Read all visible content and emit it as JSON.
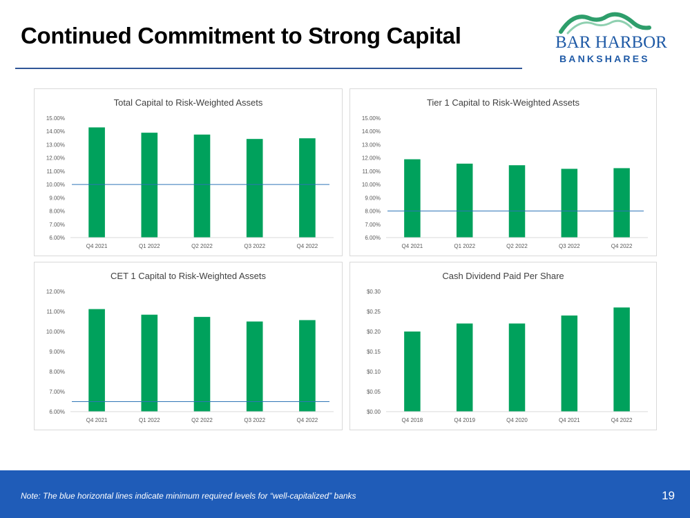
{
  "header": {
    "title": "Continued Commitment to Strong Capital",
    "logo_line1": "BAR HARBOR",
    "logo_line2": "BANKSHARES"
  },
  "footer": {
    "note": "Note:  The blue horizontal lines indicate minimum required levels for “well-capitalized” banks",
    "page_number": "19"
  },
  "colors": {
    "bar": "#00a15c",
    "threshold": "#2e75b6",
    "footer_bg": "#1f5cb8",
    "title_rule": "#2f5597",
    "logo_blue": "#1f5aa6",
    "logo_green": "#2e9e6b"
  },
  "chart_data": [
    {
      "type": "bar",
      "title": "Total Capital to Risk-Weighted Assets",
      "categories": [
        "Q4 2021",
        "Q1 2022",
        "Q2 2022",
        "Q3 2022",
        "Q4 2022"
      ],
      "values": [
        14.3,
        13.9,
        13.76,
        13.43,
        13.48
      ],
      "ylim": [
        6,
        15
      ],
      "yticks": [
        "6.00%",
        "7.00%",
        "8.00%",
        "9.00%",
        "10.00%",
        "11.00%",
        "12.00%",
        "13.00%",
        "14.00%",
        "15.00%"
      ],
      "threshold": 10.0,
      "xlabel": "",
      "ylabel": ""
    },
    {
      "type": "bar",
      "title": "Tier 1 Capital to Risk-Weighted Assets",
      "categories": [
        "Q4 2021",
        "Q1 2022",
        "Q2 2022",
        "Q3 2022",
        "Q4 2022"
      ],
      "values": [
        11.9,
        11.57,
        11.45,
        11.18,
        11.23
      ],
      "ylim": [
        6,
        15
      ],
      "yticks": [
        "6.00%",
        "7.00%",
        "8.00%",
        "9.00%",
        "10.00%",
        "11.00%",
        "12.00%",
        "13.00%",
        "14.00%",
        "15.00%"
      ],
      "threshold": 8.0,
      "xlabel": "",
      "ylabel": ""
    },
    {
      "type": "bar",
      "title": "CET 1 Capital to Risk-Weighted Assets",
      "categories": [
        "Q4 2021",
        "Q1 2022",
        "Q2 2022",
        "Q3 2022",
        "Q4 2022"
      ],
      "values": [
        11.12,
        10.84,
        10.73,
        10.5,
        10.57
      ],
      "ylim": [
        6,
        12
      ],
      "yticks": [
        "6.00%",
        "7.00%",
        "8.00%",
        "9.00%",
        "10.00%",
        "11.00%",
        "12.00%"
      ],
      "threshold": 6.5,
      "xlabel": "",
      "ylabel": ""
    },
    {
      "type": "bar",
      "title": "Cash Dividend Paid Per Share",
      "categories": [
        "Q4 2018",
        "Q4 2019",
        "Q4 2020",
        "Q4 2021",
        "Q4 2022"
      ],
      "values": [
        0.2,
        0.22,
        0.22,
        0.24,
        0.26
      ],
      "ylim": [
        0,
        0.3
      ],
      "yticks": [
        "$0.00",
        "$0.05",
        "$0.10",
        "$0.15",
        "$0.20",
        "$0.25",
        "$0.30"
      ],
      "threshold": null,
      "xlabel": "",
      "ylabel": ""
    }
  ]
}
